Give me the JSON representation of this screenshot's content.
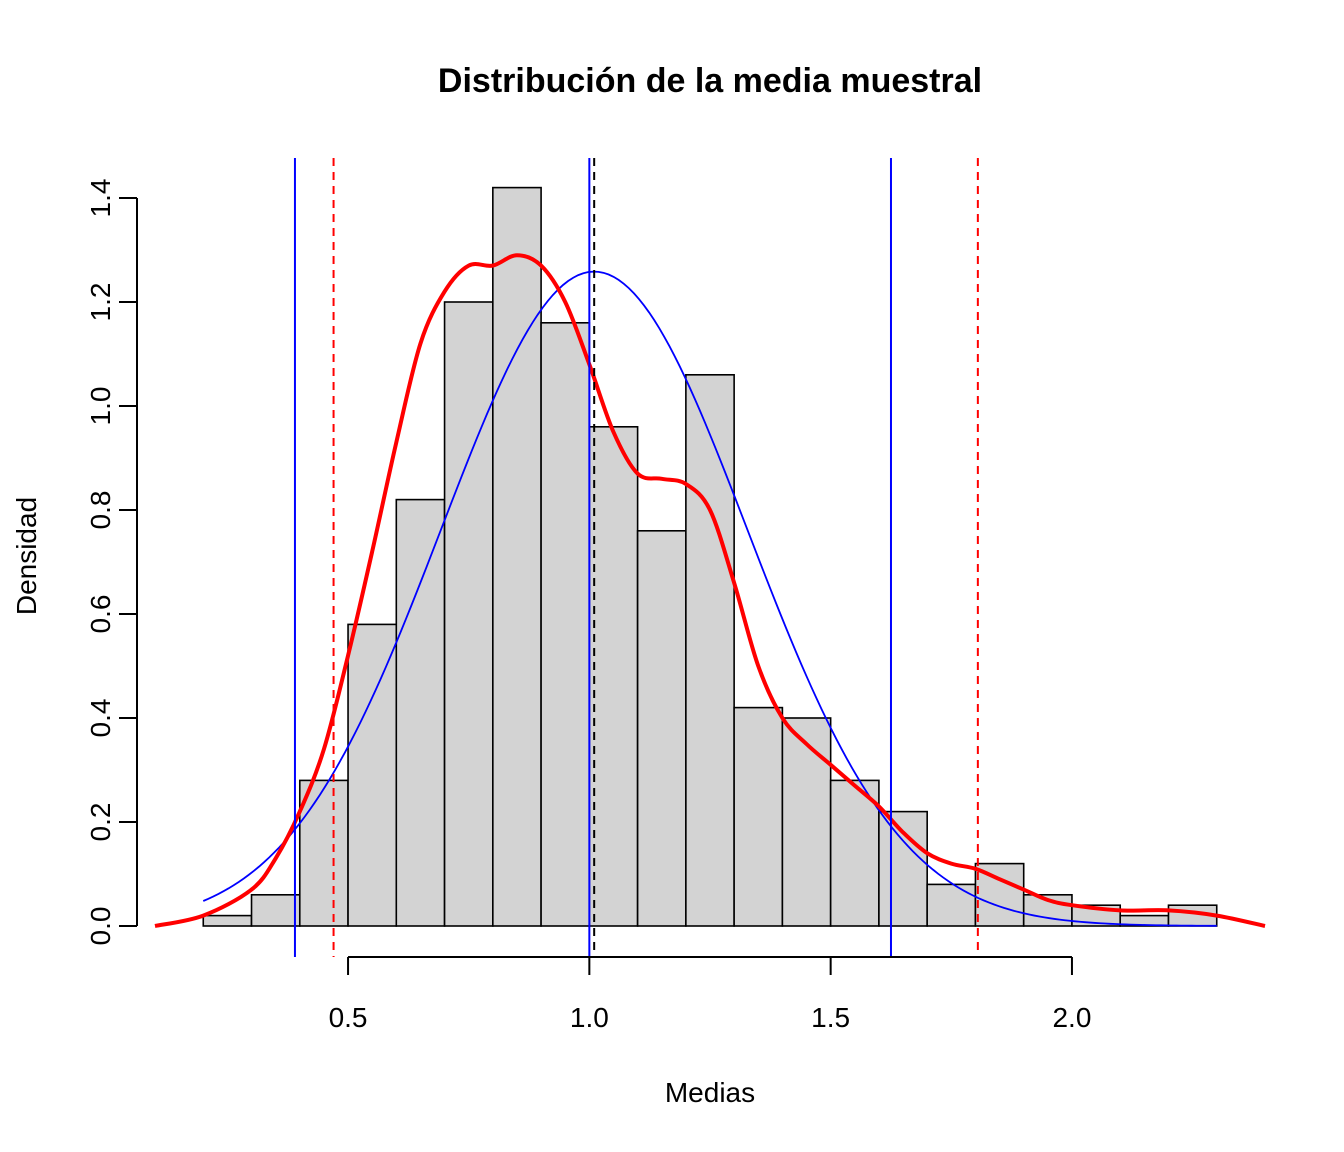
{
  "chart_data": {
    "type": "histogram",
    "title": "Distribución de la media muestral",
    "xlabel": "Medias",
    "ylabel": "Densidad",
    "x_ticks": [
      0.5,
      1.0,
      1.5,
      2.0
    ],
    "x_tick_labels": [
      "0.5",
      "1.0",
      "1.5",
      "2.0"
    ],
    "y_ticks": [
      0.0,
      0.2,
      0.4,
      0.6,
      0.8,
      1.0,
      1.2,
      1.4
    ],
    "y_tick_labels": [
      "0.0",
      "0.2",
      "0.4",
      "0.6",
      "0.8",
      "1.0",
      "1.2",
      "1.4"
    ],
    "xlim": [
      0.1,
      2.4
    ],
    "ylim": [
      0.0,
      1.45
    ],
    "grid": false,
    "legend": "none",
    "bin_edges": [
      0.2,
      0.3,
      0.4,
      0.5,
      0.6,
      0.7,
      0.8,
      0.9,
      1.0,
      1.1,
      1.2,
      1.3,
      1.4,
      1.5,
      1.6,
      1.7,
      1.8,
      1.9,
      2.0,
      2.1,
      2.2,
      2.3
    ],
    "densities": [
      0.02,
      0.06,
      0.28,
      0.58,
      0.82,
      1.2,
      1.42,
      1.16,
      0.96,
      0.76,
      1.06,
      0.42,
      0.4,
      0.28,
      0.22,
      0.08,
      0.12,
      0.06,
      0.04,
      0.02,
      0.04
    ],
    "bar_fill": "#d3d3d3",
    "bar_stroke": "#000000",
    "kde_curve": {
      "color": "#ff0000",
      "x": [
        0.1,
        0.2,
        0.3,
        0.35,
        0.4,
        0.45,
        0.5,
        0.55,
        0.6,
        0.65,
        0.7,
        0.75,
        0.8,
        0.85,
        0.9,
        0.95,
        1.0,
        1.05,
        1.1,
        1.15,
        1.2,
        1.25,
        1.3,
        1.35,
        1.4,
        1.45,
        1.5,
        1.55,
        1.6,
        1.65,
        1.7,
        1.75,
        1.8,
        1.85,
        1.9,
        1.95,
        2.0,
        2.1,
        2.2,
        2.3,
        2.4
      ],
      "y": [
        0.0,
        0.02,
        0.07,
        0.13,
        0.22,
        0.34,
        0.52,
        0.72,
        0.93,
        1.12,
        1.22,
        1.27,
        1.27,
        1.29,
        1.27,
        1.2,
        1.08,
        0.95,
        0.87,
        0.86,
        0.85,
        0.8,
        0.66,
        0.5,
        0.4,
        0.35,
        0.31,
        0.27,
        0.23,
        0.18,
        0.14,
        0.12,
        0.11,
        0.09,
        0.07,
        0.05,
        0.04,
        0.03,
        0.03,
        0.02,
        0.0
      ]
    },
    "normal_curve": {
      "color": "#0000ff",
      "mean": 1.01,
      "sd": 0.317,
      "x_range": [
        0.2,
        2.3
      ]
    },
    "vlines": [
      {
        "x": 0.39,
        "color": "#0000ff",
        "style": "solid"
      },
      {
        "x": 1.0,
        "color": "#0000ff",
        "style": "solid"
      },
      {
        "x": 1.625,
        "color": "#0000ff",
        "style": "solid"
      },
      {
        "x": 0.47,
        "color": "#ff0000",
        "style": "dashed"
      },
      {
        "x": 1.01,
        "color": "#000000",
        "style": "dashed"
      },
      {
        "x": 1.805,
        "color": "#ff0000",
        "style": "dashed"
      }
    ]
  }
}
